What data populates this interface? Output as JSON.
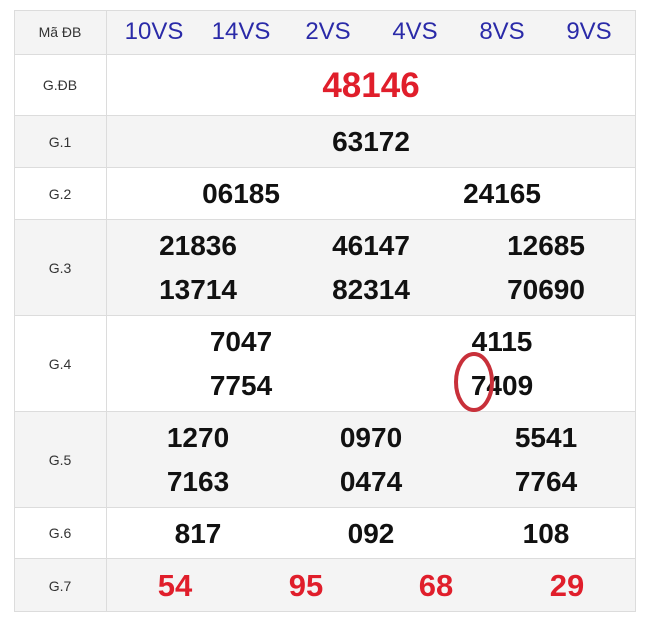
{
  "header": {
    "label": "Mã ĐB",
    "codes": [
      "10VS",
      "14VS",
      "2VS",
      "4VS",
      "8VS",
      "9VS"
    ]
  },
  "rows": [
    {
      "label": "G.ĐB",
      "lines": [
        [
          "48146"
        ]
      ]
    },
    {
      "label": "G.1",
      "lines": [
        [
          "63172"
        ]
      ]
    },
    {
      "label": "G.2",
      "lines": [
        [
          "06185",
          "24165"
        ]
      ]
    },
    {
      "label": "G.3",
      "lines": [
        [
          "21836",
          "46147",
          "12685"
        ],
        [
          "13714",
          "82314",
          "70690"
        ]
      ]
    },
    {
      "label": "G.4",
      "lines": [
        [
          "7047",
          "4115"
        ],
        [
          "7754",
          "7409"
        ]
      ]
    },
    {
      "label": "G.5",
      "lines": [
        [
          "1270",
          "0970",
          "5541"
        ],
        [
          "7163",
          "0474",
          "7764"
        ]
      ]
    },
    {
      "label": "G.6",
      "lines": [
        [
          "817",
          "092",
          "108"
        ]
      ]
    },
    {
      "label": "G.7",
      "lines": [
        [
          "54",
          "95",
          "68",
          "29"
        ]
      ]
    }
  ]
}
